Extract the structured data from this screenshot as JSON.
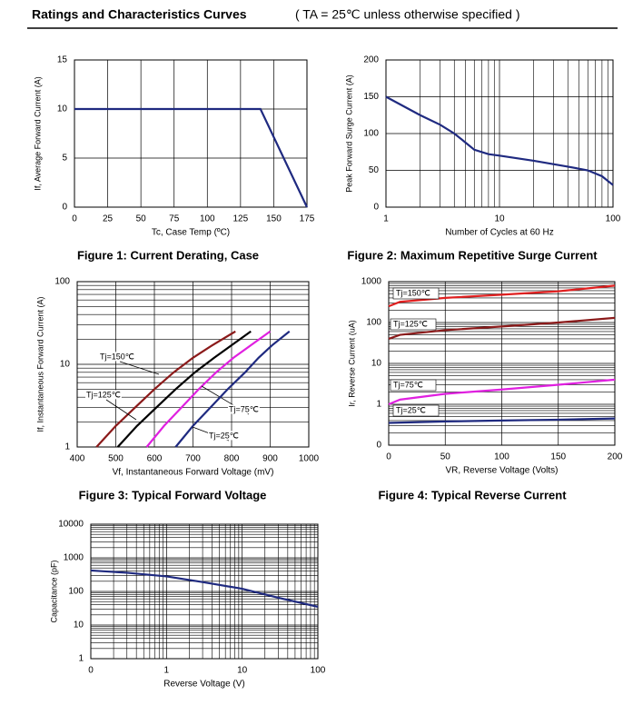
{
  "header": {
    "title": "Ratings and Characteristics Curves",
    "note": "( TA = 25℃  unless otherwise specified )"
  },
  "chart_data": [
    {
      "type": "line",
      "caption": "Figure 1: Current Derating, Case",
      "xlabel": "Tc, Case Temp (ºC)",
      "ylabel": "If, Average Forward Current (A)",
      "xlim": [
        0,
        175
      ],
      "xticks": [
        0,
        25,
        50,
        75,
        100,
        125,
        150,
        175
      ],
      "ylim": [
        0,
        15
      ],
      "yticks": [
        0,
        5,
        10,
        15
      ],
      "grid": true,
      "series": [
        {
          "color": "#1f2a80",
          "x": [
            0,
            140,
            175
          ],
          "values": [
            10,
            10,
            0
          ]
        }
      ]
    },
    {
      "type": "line",
      "caption": "Figure 2: Maximum Repetitive Surge Current",
      "xlabel": "Number of Cycles at 60 Hz",
      "ylabel": "Peak Forward Surge Current (A)",
      "xlim": [
        1,
        100
      ],
      "xlog": true,
      "xticks": [
        1,
        10,
        100
      ],
      "ylim": [
        0,
        200
      ],
      "yticks": [
        0,
        50,
        100,
        150,
        200
      ],
      "grid": true,
      "series": [
        {
          "color": "#1f2a80",
          "x": [
            1,
            2,
            3,
            4,
            5,
            6,
            8,
            10,
            20,
            40,
            60,
            80,
            100
          ],
          "values": [
            150,
            125,
            112,
            100,
            88,
            78,
            72,
            70,
            63,
            55,
            50,
            42,
            30
          ]
        }
      ]
    },
    {
      "type": "line",
      "caption": "Figure 3: Typical Forward Voltage",
      "xlabel": "Vf, Instantaneous Forward Voltage (mV)",
      "ylabel": "If, Instantaneous Forward Current (A)",
      "xlim": [
        400,
        1000
      ],
      "xticks": [
        400,
        500,
        600,
        700,
        800,
        900,
        1000
      ],
      "ylim": [
        1,
        100
      ],
      "ylog": true,
      "yticks": [
        1,
        10,
        100
      ],
      "grid": true,
      "series": [
        {
          "name": "Tj=150℃",
          "color": "#8b1a1a",
          "x": [
            450,
            500,
            550,
            600,
            650,
            700,
            750,
            810
          ],
          "values": [
            1,
            1.8,
            3,
            5,
            8,
            12,
            17,
            25
          ]
        },
        {
          "name": "Tj=125℃",
          "color": "#000000",
          "x": [
            505,
            555,
            605,
            655,
            705,
            755,
            800,
            850
          ],
          "values": [
            1,
            1.8,
            3,
            5,
            8,
            12,
            17,
            25
          ]
        },
        {
          "name": "Tj=75℃",
          "color": "#e020e0",
          "x": [
            580,
            625,
            670,
            715,
            760,
            805,
            850,
            900
          ],
          "values": [
            1,
            1.8,
            3,
            5,
            8,
            12,
            17,
            25
          ]
        },
        {
          "name": "Tj=25℃",
          "color": "#1f2a80",
          "x": [
            655,
            700,
            745,
            790,
            835,
            870,
            905,
            950
          ],
          "values": [
            1,
            1.8,
            3,
            5,
            8,
            12,
            17,
            25
          ]
        }
      ]
    },
    {
      "type": "line",
      "caption": "Figure 4: Typical Reverse Current",
      "xlabel": "VR, Reverse Voltage (Volts)",
      "ylabel": "Ir, Reverse Current (uA)",
      "xlim": [
        0,
        200
      ],
      "xticks": [
        0,
        50,
        100,
        150,
        200
      ],
      "ylim": [
        0.1,
        1000
      ],
      "ylog": true,
      "yticks": [
        {
          "value": 0.1,
          "label": "0"
        },
        1,
        10,
        100,
        1000
      ],
      "grid": true,
      "series": [
        {
          "name": "Tj=150℃",
          "color": "#e02020",
          "x": [
            0,
            10,
            50,
            100,
            150,
            200
          ],
          "values": [
            250,
            320,
            400,
            480,
            580,
            800
          ]
        },
        {
          "name": "Tj=125℃",
          "color": "#8b1a1a",
          "x": [
            0,
            10,
            50,
            100,
            150,
            200
          ],
          "values": [
            40,
            50,
            65,
            80,
            100,
            130
          ]
        },
        {
          "name": "Tj=75℃",
          "color": "#e020e0",
          "x": [
            0,
            10,
            50,
            100,
            150,
            200
          ],
          "values": [
            1,
            1.3,
            1.8,
            2.3,
            3,
            4
          ]
        },
        {
          "name": "Tj=25℃",
          "color": "#1f2a80",
          "x": [
            0,
            50,
            100,
            150,
            200
          ],
          "values": [
            0.35,
            0.38,
            0.4,
            0.42,
            0.45
          ]
        }
      ]
    },
    {
      "type": "line",
      "xlabel": "Reverse Voltage (V)",
      "ylabel": "Capacitance (pF)",
      "xlim": [
        0.1,
        100
      ],
      "xlog": true,
      "xticks": [
        {
          "value": 0.1,
          "label": "0"
        },
        1,
        10,
        100
      ],
      "ylim": [
        1,
        10000
      ],
      "ylog": true,
      "yticks": [
        1,
        10,
        100,
        1000,
        10000
      ],
      "grid": true,
      "series": [
        {
          "color": "#1f2a80",
          "x": [
            0.1,
            0.3,
            1,
            3,
            10,
            30,
            100
          ],
          "values": [
            420,
            360,
            280,
            190,
            120,
            65,
            35
          ]
        }
      ]
    }
  ]
}
